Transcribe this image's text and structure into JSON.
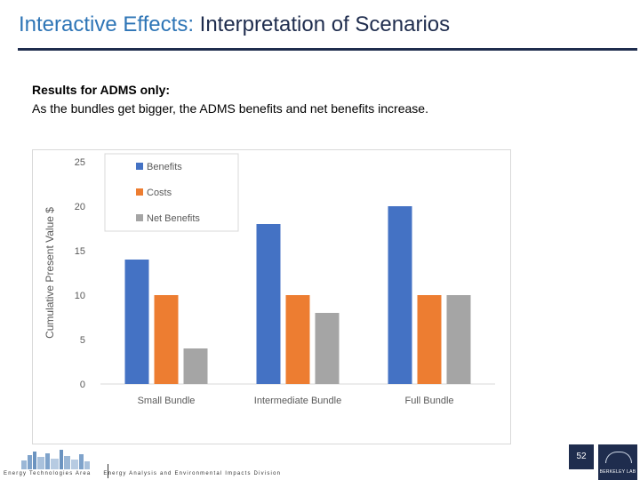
{
  "slide": {
    "title_accent": "Interactive Effects:",
    "title_rest": " Interpretation of Scenarios",
    "intro_heading": "Results for ADMS only:",
    "intro_body": "As the bundles get bigger, the ADMS benefits and net benefits increase.",
    "page_number": "52",
    "footer_left": "Energy Technologies Area",
    "footer_right": "Energy Analysis and Environmental Impacts Division",
    "logo_text": "BERKELEY LAB"
  },
  "colors": {
    "title": "#1f2d4e",
    "title_accent": "#2e75b6",
    "benefits": "#4472c4",
    "costs": "#ed7d31",
    "net_benefits": "#a5a5a5"
  },
  "chart_data": {
    "type": "bar",
    "title": "",
    "xlabel": "",
    "ylabel": "Cumulative Present Value $",
    "ylim": [
      0,
      25
    ],
    "yticks": [
      0,
      5,
      10,
      15,
      20,
      25
    ],
    "categories": [
      "Small Bundle",
      "Intermediate Bundle",
      "Full Bundle"
    ],
    "series": [
      {
        "name": "Benefits",
        "values": [
          14,
          18,
          20
        ],
        "color": "#4472c4"
      },
      {
        "name": "Costs",
        "values": [
          10,
          10,
          10
        ],
        "color": "#ed7d31"
      },
      {
        "name": "Net Benefits",
        "values": [
          4,
          8,
          10
        ],
        "color": "#a5a5a5"
      }
    ],
    "legend_position": "top-left",
    "grid": false
  }
}
